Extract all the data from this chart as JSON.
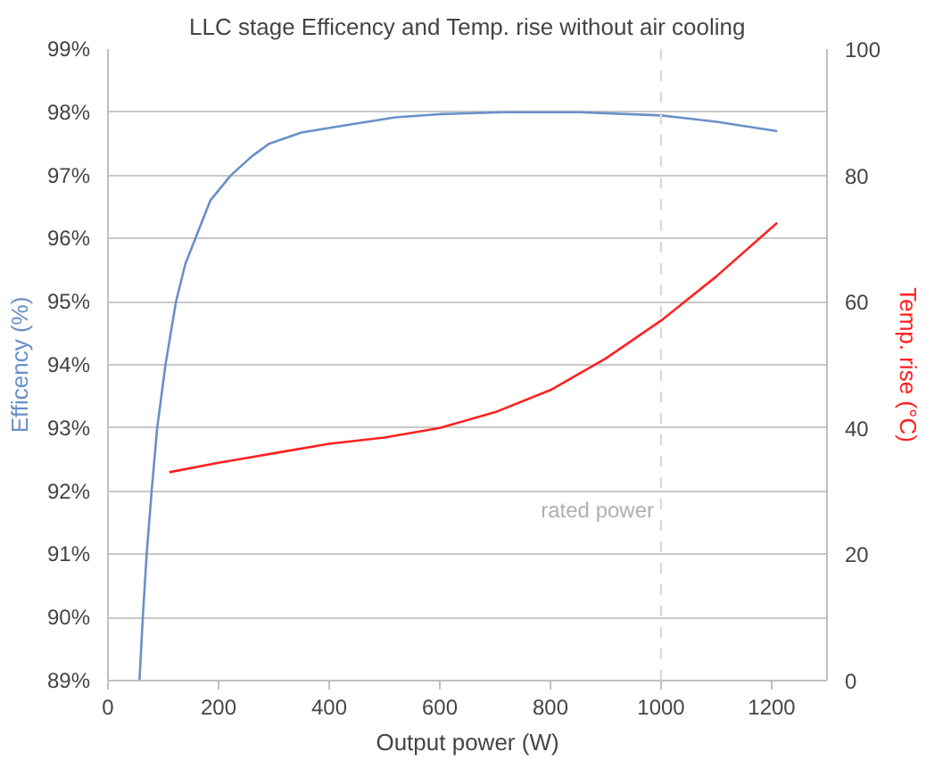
{
  "chart_data": {
    "type": "line",
    "title": "LLC stage Efficency and Temp. rise without air cooling",
    "xlabel": "Output power (W)",
    "ylabel": "Efficency (%)",
    "y2label": "Temp. rise (°C)",
    "xlim": [
      0,
      1300
    ],
    "xticks": [
      0,
      200,
      400,
      600,
      800,
      1000,
      1200
    ],
    "ylim": [
      89,
      99
    ],
    "yticks": [
      {
        "value": 89,
        "label": "89%"
      },
      {
        "value": 90,
        "label": "90%"
      },
      {
        "value": 91,
        "label": "91%"
      },
      {
        "value": 92,
        "label": "92%"
      },
      {
        "value": 93,
        "label": "93%"
      },
      {
        "value": 94,
        "label": "94%"
      },
      {
        "value": 95,
        "label": "95%"
      },
      {
        "value": 96,
        "label": "96%"
      },
      {
        "value": 97,
        "label": "97%"
      },
      {
        "value": 98,
        "label": "98%"
      },
      {
        "value": 99,
        "label": "99%"
      }
    ],
    "y2lim": [
      0,
      100
    ],
    "y2ticks": [
      0,
      20,
      40,
      60,
      80,
      100
    ],
    "grid": "y",
    "line_style": "solid",
    "series": [
      {
        "color": "#6a8fc8",
        "x": [
          57,
          63,
          70,
          79,
          89,
          104,
          123,
          140,
          158,
          185,
          222,
          260,
          291,
          350,
          434,
          520,
          600,
          718,
          850,
          1000,
          1100,
          1210
        ],
        "values": [
          89.0,
          90.0,
          91.0,
          92.0,
          93.0,
          94.0,
          95.0,
          95.6,
          96.0,
          96.6,
          97.0,
          97.3,
          97.5,
          97.68,
          97.8,
          97.92,
          97.97,
          98.0,
          98.0,
          97.95,
          97.85,
          97.7
        ]
      },
      {
        "color": "#ff2020",
        "axis": "y2",
        "x": [
          111,
          200,
          300,
          400,
          500,
          600,
          700,
          800,
          900,
          1000,
          1100,
          1210
        ],
        "values": [
          33,
          34.5,
          36,
          37.5,
          38.5,
          40,
          42.5,
          46,
          51,
          57,
          64,
          72.5
        ]
      }
    ],
    "ref_lines": [
      {
        "axis": "x",
        "value": 1000,
        "label": "rated power",
        "color": "#d9d9d9",
        "line_style": "dashed"
      }
    ]
  }
}
